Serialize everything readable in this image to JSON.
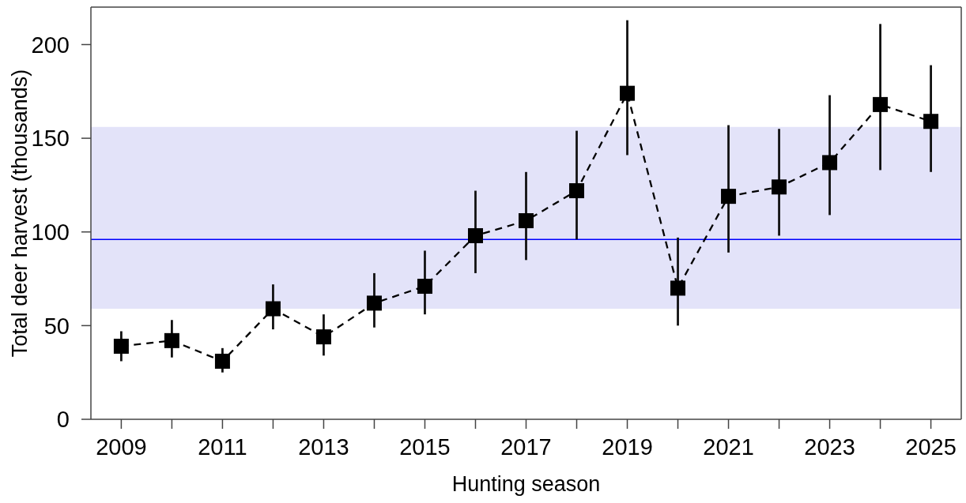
{
  "chart_data": {
    "type": "line",
    "xlabel": "Hunting season",
    "ylabel": "Total deer harvest (thousands)",
    "x": [
      2009,
      2010,
      2011,
      2012,
      2013,
      2014,
      2015,
      2016,
      2017,
      2018,
      2019,
      2020,
      2021,
      2022,
      2023,
      2024,
      2025
    ],
    "values": [
      39,
      42,
      31,
      59,
      44,
      62,
      71,
      98,
      106,
      122,
      174,
      70,
      119,
      124,
      137,
      168,
      159
    ],
    "errors": [
      [
        31,
        47
      ],
      [
        33,
        53
      ],
      [
        25,
        38
      ],
      [
        48,
        72
      ],
      [
        34,
        56
      ],
      [
        49,
        78
      ],
      [
        56,
        90
      ],
      [
        78,
        122
      ],
      [
        85,
        132
      ],
      [
        96,
        154
      ],
      [
        141,
        213
      ],
      [
        50,
        97
      ],
      [
        89,
        157
      ],
      [
        98,
        155
      ],
      [
        109,
        173
      ],
      [
        133,
        211
      ],
      [
        132,
        189
      ]
    ],
    "color": "#000000",
    "marker": "square",
    "line_style": "dashed",
    "xlim": [
      2008.4,
      2025.6
    ],
    "xticks": [
      2009,
      {
        "value": 2010,
        "label": null
      },
      2011,
      {
        "value": 2012,
        "label": null
      },
      2013,
      {
        "value": 2014,
        "label": null
      },
      2015,
      {
        "value": 2016,
        "label": null
      },
      2017,
      {
        "value": 2018,
        "label": null
      },
      2019,
      {
        "value": 2020,
        "label": null
      },
      2021,
      {
        "value": 2022,
        "label": null
      },
      2023,
      {
        "value": 2024,
        "label": null
      },
      2025
    ],
    "ylim": [
      0,
      220
    ],
    "yticks": [
      0,
      50,
      100,
      150,
      200
    ],
    "ref_lines": [
      {
        "axis": "y",
        "value": 96,
        "color": "#0000ff"
      }
    ],
    "bands": [
      {
        "axis": "y",
        "from": 59,
        "to": 156,
        "color": "#e3e3f9"
      }
    ]
  }
}
